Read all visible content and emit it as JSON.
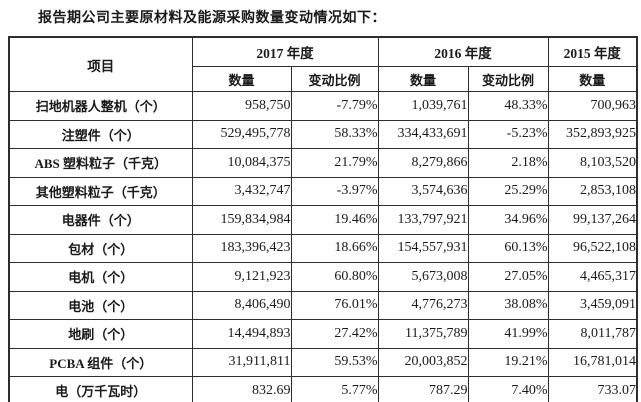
{
  "page": {
    "title": "报告期公司主要原材料及能源采购数量变动情况如下："
  },
  "table": {
    "header": {
      "item_col": "项目",
      "qty_label": "数量",
      "change_label": "变动比例",
      "year_groups": [
        {
          "label": "2017 年度"
        },
        {
          "label": "2016 年度"
        },
        {
          "label": "2015 年度"
        }
      ]
    },
    "rows": [
      {
        "item": "扫地机器人整机（个）",
        "qty_2017": "958,750",
        "chg_2017": "-7.79%",
        "qty_2016": "1,039,761",
        "chg_2016": "48.33%",
        "qty_2015": "700,963"
      },
      {
        "item": "注塑件（个）",
        "qty_2017": "529,495,778",
        "chg_2017": "58.33%",
        "qty_2016": "334,433,691",
        "chg_2016": "-5.23%",
        "qty_2015": "352,893,925"
      },
      {
        "item": "ABS 塑料粒子（千克）",
        "qty_2017": "10,084,375",
        "chg_2017": "21.79%",
        "qty_2016": "8,279,866",
        "chg_2016": "2.18%",
        "qty_2015": "8,103,520"
      },
      {
        "item": "其他塑料粒子（千克）",
        "qty_2017": "3,432,747",
        "chg_2017": "-3.97%",
        "qty_2016": "3,574,636",
        "chg_2016": "25.29%",
        "qty_2015": "2,853,108"
      },
      {
        "item": "电器件（个）",
        "qty_2017": "159,834,984",
        "chg_2017": "19.46%",
        "qty_2016": "133,797,921",
        "chg_2016": "34.96%",
        "qty_2015": "99,137,264"
      },
      {
        "item": "包材（个）",
        "qty_2017": "183,396,423",
        "chg_2017": "18.66%",
        "qty_2016": "154,557,931",
        "chg_2016": "60.13%",
        "qty_2015": "96,522,108"
      },
      {
        "item": "电机（个）",
        "qty_2017": "9,121,923",
        "chg_2017": "60.80%",
        "qty_2016": "5,673,008",
        "chg_2016": "27.05%",
        "qty_2015": "4,465,317"
      },
      {
        "item": "电池（个）",
        "qty_2017": "8,406,490",
        "chg_2017": "76.01%",
        "qty_2016": "4,776,273",
        "chg_2016": "38.08%",
        "qty_2015": "3,459,091"
      },
      {
        "item": "地刷（个）",
        "qty_2017": "14,494,893",
        "chg_2017": "27.42%",
        "qty_2016": "11,375,789",
        "chg_2016": "41.99%",
        "qty_2015": "8,011,787"
      },
      {
        "item": "PCBA 组件（个）",
        "qty_2017": "31,911,811",
        "chg_2017": "59.53%",
        "qty_2016": "20,003,852",
        "chg_2016": "19.21%",
        "qty_2015": "16,781,014"
      },
      {
        "item": "电（万千瓦时）",
        "qty_2017": "832.69",
        "chg_2017": "5.77%",
        "qty_2016": "787.29",
        "chg_2016": "7.40%",
        "qty_2015": "733.07"
      }
    ]
  }
}
